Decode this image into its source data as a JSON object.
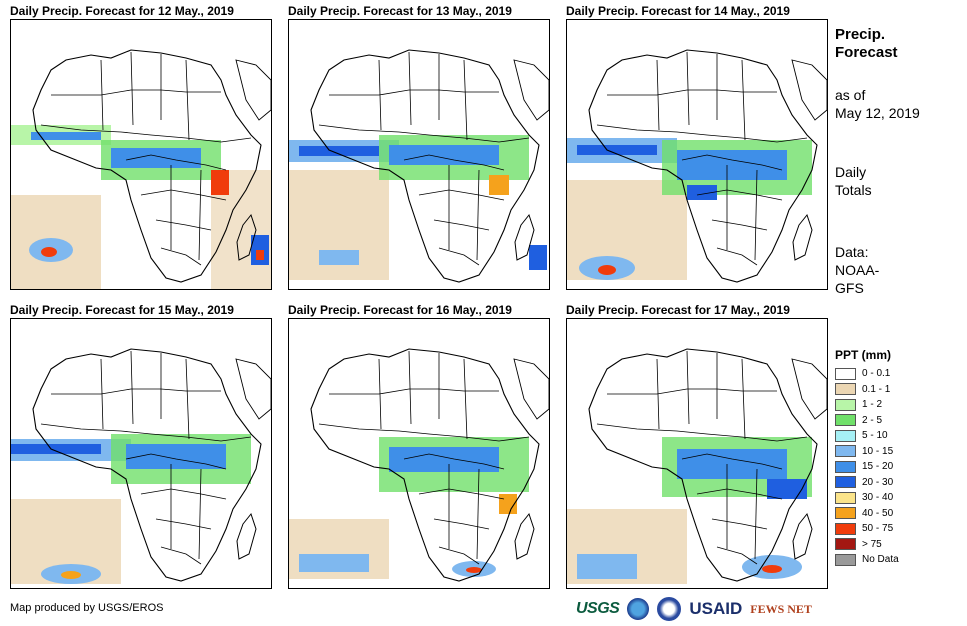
{
  "panels": [
    {
      "title": "Daily Precip. Forecast for 12 May., 2019"
    },
    {
      "title": "Daily Precip. Forecast for 13 May., 2019"
    },
    {
      "title": "Daily Precip. Forecast for 14 May., 2019"
    },
    {
      "title": "Daily Precip. Forecast for 15 May., 2019"
    },
    {
      "title": "Daily Precip. Forecast for 16 May., 2019"
    },
    {
      "title": "Daily Precip. Forecast for 17 May., 2019"
    }
  ],
  "side": {
    "title_line1": "Precip.",
    "title_line2": "Forecast",
    "asof_line1": "as of",
    "asof_line2": "May 12, 2019",
    "totals_line1": "Daily",
    "totals_line2": "Totals",
    "data_line1": "Data:",
    "data_line2": "NOAA-",
    "data_line3": "GFS"
  },
  "legend": {
    "title": "PPT (mm)",
    "items": [
      {
        "label": "0 - 0.1",
        "color": "#ffffff"
      },
      {
        "label": "0.1 - 1",
        "color": "#ebd6b3"
      },
      {
        "label": "1 - 2",
        "color": "#b8f5a8"
      },
      {
        "label": "2 - 5",
        "color": "#70e06a"
      },
      {
        "label": "5 - 10",
        "color": "#a6f0f5"
      },
      {
        "label": "10 - 15",
        "color": "#7fb8ef"
      },
      {
        "label": "15 - 20",
        "color": "#3f8fe8"
      },
      {
        "label": "20 - 30",
        "color": "#1f5fe0"
      },
      {
        "label": "30 - 40",
        "color": "#fbe48a"
      },
      {
        "label": "40 - 50",
        "color": "#f5a21c"
      },
      {
        "label": "50 - 75",
        "color": "#f03c0c"
      },
      {
        "label": "> 75",
        "color": "#a31712"
      },
      {
        "label": "No Data",
        "color": "#9a9a9a"
      }
    ]
  },
  "credit": "Map produced by USGS/EROS",
  "logos": {
    "usgs": "USGS",
    "usaid": "USAID",
    "fews": "FEWS NET"
  }
}
